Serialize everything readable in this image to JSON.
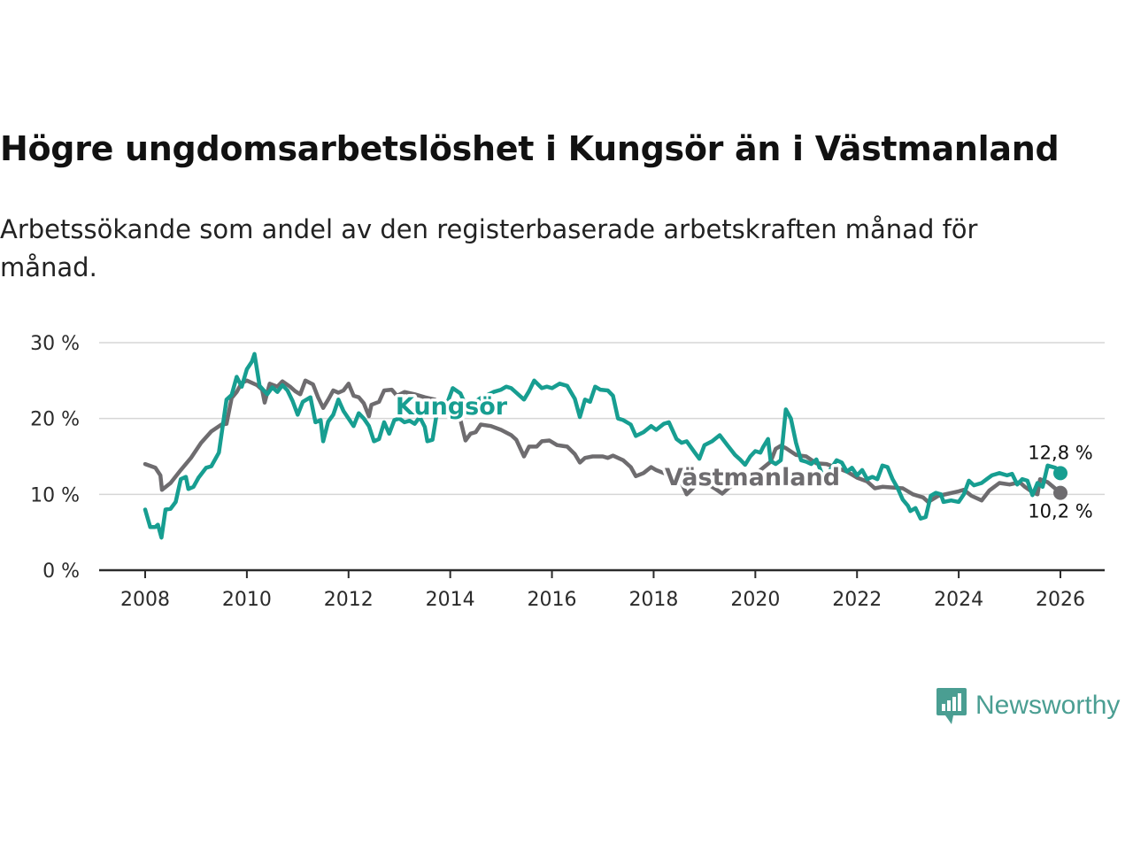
{
  "title": "Högre ungdomsarbetslöshet i Kungsör än i Västmanland",
  "subtitle": "Arbetssökande som andel av den registerbaserade arbetskraften månad för månad.",
  "brand": {
    "name": "Newsworthy",
    "color": "#4a9e92"
  },
  "chart_data": {
    "type": "line",
    "xlim": [
      2007.7,
      2026.9
    ],
    "ylim": [
      0,
      30
    ],
    "yticks": [
      0,
      10,
      20,
      30
    ],
    "ytick_labels": [
      "0 %",
      "10 %",
      "20 %",
      "30 %"
    ],
    "xticks": [
      2008,
      2010,
      2012,
      2014,
      2016,
      2018,
      2020,
      2022,
      2024,
      2026
    ],
    "xtick_labels": [
      "2008",
      "2010",
      "2012",
      "2014",
      "2016",
      "2018",
      "2020",
      "2022",
      "2024",
      "2026"
    ],
    "series": [
      {
        "name": "Västmanland",
        "color": "#6e6c6f",
        "end_label": "10,2 %",
        "points": [
          [
            2008.0,
            14.0
          ],
          [
            2008.2,
            13.5
          ],
          [
            2008.3,
            12.5
          ],
          [
            2008.33,
            10.6
          ],
          [
            2008.5,
            11.5
          ],
          [
            2008.7,
            13.2
          ],
          [
            2008.9,
            14.8
          ],
          [
            2009.1,
            16.8
          ],
          [
            2009.3,
            18.3
          ],
          [
            2009.5,
            19.2
          ],
          [
            2009.6,
            19.3
          ],
          [
            2009.7,
            22.7
          ],
          [
            2009.8,
            23.5
          ],
          [
            2009.9,
            24.7
          ],
          [
            2010.0,
            25.0
          ],
          [
            2010.2,
            24.4
          ],
          [
            2010.3,
            23.8
          ],
          [
            2010.35,
            22.1
          ],
          [
            2010.45,
            24.6
          ],
          [
            2010.6,
            24.2
          ],
          [
            2010.7,
            24.9
          ],
          [
            2010.85,
            24.2
          ],
          [
            2010.95,
            23.6
          ],
          [
            2011.05,
            23.2
          ],
          [
            2011.15,
            25.0
          ],
          [
            2011.3,
            24.5
          ],
          [
            2011.4,
            22.8
          ],
          [
            2011.5,
            21.4
          ],
          [
            2011.6,
            22.5
          ],
          [
            2011.7,
            23.7
          ],
          [
            2011.8,
            23.4
          ],
          [
            2011.9,
            23.7
          ],
          [
            2012.0,
            24.6
          ],
          [
            2012.1,
            23.0
          ],
          [
            2012.2,
            22.8
          ],
          [
            2012.3,
            22.0
          ],
          [
            2012.4,
            20.3
          ],
          [
            2012.45,
            21.8
          ],
          [
            2012.6,
            22.2
          ],
          [
            2012.7,
            23.7
          ],
          [
            2012.85,
            23.8
          ],
          [
            2012.95,
            23.0
          ],
          [
            2013.1,
            23.5
          ],
          [
            2013.3,
            23.2
          ],
          [
            2013.5,
            22.8
          ],
          [
            2013.7,
            22.5
          ],
          [
            2013.85,
            21.5
          ],
          [
            2014.0,
            20.8
          ],
          [
            2014.2,
            19.8
          ],
          [
            2014.3,
            17.1
          ],
          [
            2014.4,
            18.0
          ],
          [
            2014.5,
            18.2
          ],
          [
            2014.6,
            19.2
          ],
          [
            2014.8,
            19.0
          ],
          [
            2015.0,
            18.5
          ],
          [
            2015.2,
            17.8
          ],
          [
            2015.3,
            17.2
          ],
          [
            2015.45,
            15.0
          ],
          [
            2015.55,
            16.3
          ],
          [
            2015.7,
            16.3
          ],
          [
            2015.8,
            17.0
          ],
          [
            2015.95,
            17.1
          ],
          [
            2016.1,
            16.5
          ],
          [
            2016.3,
            16.3
          ],
          [
            2016.45,
            15.3
          ],
          [
            2016.55,
            14.2
          ],
          [
            2016.65,
            14.8
          ],
          [
            2016.8,
            15.0
          ],
          [
            2017.0,
            15.0
          ],
          [
            2017.1,
            14.8
          ],
          [
            2017.2,
            15.1
          ],
          [
            2017.4,
            14.5
          ],
          [
            2017.55,
            13.6
          ],
          [
            2017.65,
            12.4
          ],
          [
            2017.8,
            12.8
          ],
          [
            2017.95,
            13.6
          ],
          [
            2018.05,
            13.2
          ],
          [
            2018.2,
            12.8
          ],
          [
            2018.3,
            12.6
          ],
          [
            2018.45,
            12.0
          ],
          [
            2018.55,
            11.5
          ],
          [
            2018.65,
            10.0
          ],
          [
            2018.8,
            11.0
          ],
          [
            2018.95,
            11.4
          ],
          [
            2019.1,
            11.2
          ],
          [
            2019.2,
            10.8
          ],
          [
            2019.35,
            10.1
          ],
          [
            2019.5,
            11.0
          ],
          [
            2019.7,
            11.6
          ],
          [
            2019.9,
            12.0
          ],
          [
            2020.1,
            13.2
          ],
          [
            2020.3,
            14.3
          ],
          [
            2020.4,
            16.0
          ],
          [
            2020.5,
            16.4
          ],
          [
            2020.6,
            16.1
          ],
          [
            2020.8,
            15.2
          ],
          [
            2021.0,
            15.0
          ],
          [
            2021.2,
            14.1
          ],
          [
            2021.4,
            14.0
          ],
          [
            2021.6,
            13.5
          ],
          [
            2021.8,
            13.0
          ],
          [
            2022.0,
            12.2
          ],
          [
            2022.2,
            11.7
          ],
          [
            2022.35,
            10.8
          ],
          [
            2022.5,
            11.0
          ],
          [
            2022.7,
            10.9
          ],
          [
            2022.9,
            10.8
          ],
          [
            2023.1,
            10.0
          ],
          [
            2023.3,
            9.6
          ],
          [
            2023.4,
            9.0
          ],
          [
            2023.6,
            9.8
          ],
          [
            2023.8,
            10.1
          ],
          [
            2024.0,
            10.4
          ],
          [
            2024.1,
            10.6
          ],
          [
            2024.25,
            9.8
          ],
          [
            2024.45,
            9.2
          ],
          [
            2024.6,
            10.5
          ],
          [
            2024.8,
            11.5
          ],
          [
            2025.0,
            11.3
          ],
          [
            2025.2,
            11.6
          ],
          [
            2025.3,
            11.0
          ],
          [
            2025.45,
            10.3
          ],
          [
            2025.55,
            10.0
          ],
          [
            2025.6,
            12.0
          ],
          [
            2025.75,
            11.6
          ],
          [
            2026.0,
            10.2
          ]
        ]
      },
      {
        "name": "Kungsör",
        "color": "#179e91",
        "end_label": "12,8 %",
        "points": [
          [
            2008.0,
            8.0
          ],
          [
            2008.1,
            5.7
          ],
          [
            2008.2,
            5.7
          ],
          [
            2008.25,
            6.0
          ],
          [
            2008.32,
            4.3
          ],
          [
            2008.4,
            8.0
          ],
          [
            2008.5,
            8.1
          ],
          [
            2008.6,
            9.0
          ],
          [
            2008.7,
            12.0
          ],
          [
            2008.8,
            12.3
          ],
          [
            2008.85,
            10.7
          ],
          [
            2008.95,
            11.0
          ],
          [
            2009.05,
            12.2
          ],
          [
            2009.2,
            13.5
          ],
          [
            2009.3,
            13.7
          ],
          [
            2009.45,
            15.5
          ],
          [
            2009.6,
            22.5
          ],
          [
            2009.7,
            23.1
          ],
          [
            2009.8,
            25.5
          ],
          [
            2009.9,
            24.2
          ],
          [
            2010.0,
            26.5
          ],
          [
            2010.1,
            27.5
          ],
          [
            2010.15,
            28.5
          ],
          [
            2010.25,
            24.3
          ],
          [
            2010.4,
            23.2
          ],
          [
            2010.5,
            24.1
          ],
          [
            2010.6,
            23.5
          ],
          [
            2010.7,
            24.4
          ],
          [
            2010.8,
            23.7
          ],
          [
            2010.9,
            22.3
          ],
          [
            2011.0,
            20.5
          ],
          [
            2011.1,
            22.2
          ],
          [
            2011.25,
            22.8
          ],
          [
            2011.35,
            19.5
          ],
          [
            2011.45,
            19.8
          ],
          [
            2011.5,
            17.0
          ],
          [
            2011.6,
            19.6
          ],
          [
            2011.7,
            20.5
          ],
          [
            2011.8,
            22.5
          ],
          [
            2011.9,
            21.0
          ],
          [
            2012.0,
            20.0
          ],
          [
            2012.1,
            19.0
          ],
          [
            2012.2,
            20.7
          ],
          [
            2012.3,
            20.0
          ],
          [
            2012.4,
            19.0
          ],
          [
            2012.5,
            17.0
          ],
          [
            2012.6,
            17.3
          ],
          [
            2012.7,
            19.5
          ],
          [
            2012.8,
            18.0
          ],
          [
            2012.9,
            19.8
          ],
          [
            2013.0,
            20.0
          ],
          [
            2013.1,
            19.5
          ],
          [
            2013.2,
            19.7
          ],
          [
            2013.3,
            19.3
          ],
          [
            2013.4,
            20.2
          ],
          [
            2013.5,
            18.9
          ],
          [
            2013.55,
            17.0
          ],
          [
            2013.65,
            17.2
          ],
          [
            2013.75,
            21.3
          ],
          [
            2013.85,
            21.8
          ],
          [
            2013.95,
            22.2
          ],
          [
            2014.05,
            24.0
          ],
          [
            2014.2,
            23.3
          ],
          [
            2014.35,
            21.0
          ],
          [
            2014.45,
            22.0
          ],
          [
            2014.6,
            22.7
          ],
          [
            2014.7,
            23.0
          ],
          [
            2014.85,
            23.5
          ],
          [
            2015.0,
            23.8
          ],
          [
            2015.1,
            24.2
          ],
          [
            2015.2,
            24.0
          ],
          [
            2015.3,
            23.4
          ],
          [
            2015.45,
            22.5
          ],
          [
            2015.55,
            23.6
          ],
          [
            2015.65,
            25.0
          ],
          [
            2015.8,
            24.0
          ],
          [
            2015.9,
            24.2
          ],
          [
            2016.0,
            24.0
          ],
          [
            2016.15,
            24.6
          ],
          [
            2016.3,
            24.3
          ],
          [
            2016.45,
            22.6
          ],
          [
            2016.55,
            20.2
          ],
          [
            2016.65,
            22.5
          ],
          [
            2016.75,
            22.2
          ],
          [
            2016.85,
            24.2
          ],
          [
            2016.95,
            23.8
          ],
          [
            2017.1,
            23.7
          ],
          [
            2017.2,
            23.0
          ],
          [
            2017.3,
            20.0
          ],
          [
            2017.4,
            19.8
          ],
          [
            2017.55,
            19.2
          ],
          [
            2017.65,
            17.7
          ],
          [
            2017.8,
            18.2
          ],
          [
            2017.95,
            19.0
          ],
          [
            2018.05,
            18.5
          ],
          [
            2018.2,
            19.3
          ],
          [
            2018.3,
            19.5
          ],
          [
            2018.45,
            17.3
          ],
          [
            2018.55,
            16.8
          ],
          [
            2018.65,
            17.0
          ],
          [
            2018.8,
            15.6
          ],
          [
            2018.9,
            14.7
          ],
          [
            2019.0,
            16.5
          ],
          [
            2019.15,
            17.0
          ],
          [
            2019.3,
            17.8
          ],
          [
            2019.45,
            16.5
          ],
          [
            2019.6,
            15.2
          ],
          [
            2019.7,
            14.6
          ],
          [
            2019.8,
            13.9
          ],
          [
            2019.9,
            15.0
          ],
          [
            2020.0,
            15.7
          ],
          [
            2020.1,
            15.5
          ],
          [
            2020.15,
            16.2
          ],
          [
            2020.25,
            17.3
          ],
          [
            2020.3,
            14.4
          ],
          [
            2020.4,
            14.0
          ],
          [
            2020.5,
            14.5
          ],
          [
            2020.6,
            21.2
          ],
          [
            2020.7,
            20.0
          ],
          [
            2020.8,
            16.8
          ],
          [
            2020.9,
            14.5
          ],
          [
            2021.0,
            14.3
          ],
          [
            2021.1,
            14.0
          ],
          [
            2021.2,
            14.6
          ],
          [
            2021.35,
            12.0
          ],
          [
            2021.5,
            13.5
          ],
          [
            2021.6,
            14.5
          ],
          [
            2021.7,
            14.2
          ],
          [
            2021.8,
            13.0
          ],
          [
            2021.9,
            13.5
          ],
          [
            2022.0,
            12.5
          ],
          [
            2022.1,
            13.2
          ],
          [
            2022.2,
            12.0
          ],
          [
            2022.3,
            12.3
          ],
          [
            2022.4,
            12.0
          ],
          [
            2022.5,
            13.8
          ],
          [
            2022.6,
            13.6
          ],
          [
            2022.7,
            12.0
          ],
          [
            2022.8,
            10.8
          ],
          [
            2022.9,
            9.3
          ],
          [
            2023.0,
            8.5
          ],
          [
            2023.05,
            7.8
          ],
          [
            2023.15,
            8.2
          ],
          [
            2023.25,
            6.8
          ],
          [
            2023.35,
            7.0
          ],
          [
            2023.45,
            9.8
          ],
          [
            2023.55,
            10.2
          ],
          [
            2023.65,
            10.0
          ],
          [
            2023.7,
            9.0
          ],
          [
            2023.85,
            9.2
          ],
          [
            2024.0,
            9.0
          ],
          [
            2024.1,
            10.0
          ],
          [
            2024.2,
            11.8
          ],
          [
            2024.3,
            11.2
          ],
          [
            2024.45,
            11.5
          ],
          [
            2024.55,
            12.0
          ],
          [
            2024.65,
            12.5
          ],
          [
            2024.8,
            12.8
          ],
          [
            2024.95,
            12.5
          ],
          [
            2025.05,
            12.7
          ],
          [
            2025.15,
            11.3
          ],
          [
            2025.25,
            12.0
          ],
          [
            2025.35,
            11.8
          ],
          [
            2025.45,
            9.9
          ],
          [
            2025.55,
            11.5
          ],
          [
            2025.65,
            11.0
          ],
          [
            2025.75,
            13.8
          ],
          [
            2025.9,
            13.5
          ],
          [
            2026.0,
            12.8
          ]
        ]
      }
    ]
  }
}
